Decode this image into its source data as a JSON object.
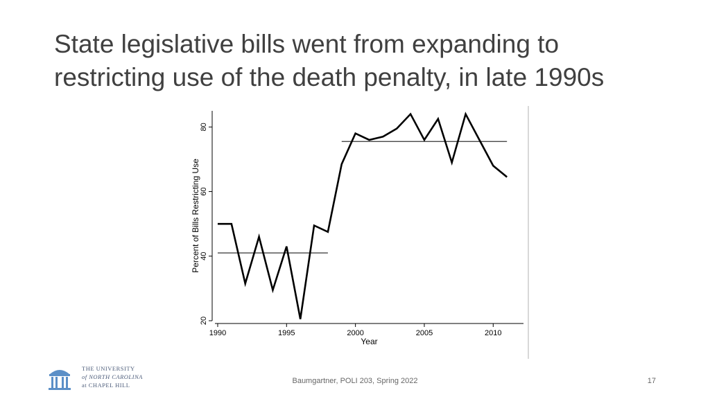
{
  "slide": {
    "title_line1": "State legislative bills went from expanding to",
    "title_line2": "restricting use of the death penalty, in late 1990s",
    "footer": "Baumgartner, POLI 203, Spring 2022",
    "page_number": "17",
    "logo": {
      "line1": "THE UNIVERSITY",
      "line2": "of NORTH CAROLINA",
      "line3": "at CHAPEL HILL",
      "color": "#4a5a78"
    }
  },
  "chart_data": {
    "type": "line",
    "xlabel": "Year",
    "ylabel": "Percent of Bills Restricting Use",
    "xlim": [
      1989.8,
      2012.2
    ],
    "ylim": [
      20,
      85
    ],
    "xticks": [
      1990,
      1995,
      2000,
      2005,
      2010
    ],
    "yticks": [
      20,
      40,
      60,
      80
    ],
    "grid": false,
    "series": [
      {
        "x": [
          1990,
          1991,
          1992,
          1993,
          1994,
          1995,
          1996,
          1997,
          1998,
          1999,
          2000,
          2001,
          2002,
          2003,
          2004,
          2005,
          2006,
          2007,
          2008,
          2009,
          2010,
          2011
        ],
        "y": [
          50,
          50,
          31.5,
          46,
          29.5,
          43,
          20.5,
          49.5,
          47.5,
          68.5,
          78,
          76,
          77,
          79.5,
          84,
          76,
          82.5,
          69,
          84,
          76,
          68,
          64.5
        ],
        "color": "#000000"
      }
    ],
    "reference_lines": [
      {
        "x_start": 1990,
        "x_end": 1998,
        "y": 41,
        "color": "#333333"
      },
      {
        "x_start": 1999,
        "x_end": 2011,
        "y": 75.5,
        "color": "#333333"
      }
    ]
  }
}
